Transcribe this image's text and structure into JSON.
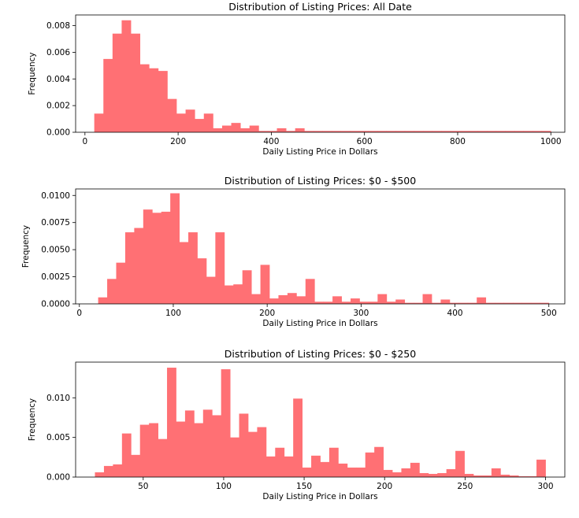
{
  "chart_data": [
    {
      "type": "bar",
      "title": "Distribution of Listing Prices: All Date",
      "xlabel": "Daily Listing Price in Dollars",
      "ylabel": "Frequency",
      "xlim": [
        -20,
        1030
      ],
      "ylim": [
        0,
        0.0088
      ],
      "xticks": [
        0,
        200,
        400,
        600,
        800,
        1000
      ],
      "yticks": [
        0.0,
        0.002,
        0.004,
        0.006,
        0.008
      ],
      "ytick_labels": [
        "0.000",
        "0.002",
        "0.004",
        "0.006",
        "0.008"
      ],
      "bin_start": 20,
      "bin_width": 19.6,
      "values": [
        0.0014,
        0.0055,
        0.0074,
        0.0084,
        0.0074,
        0.0051,
        0.0048,
        0.0046,
        0.0025,
        0.0014,
        0.0017,
        0.001,
        0.0014,
        0.0003,
        0.0005,
        0.0007,
        0.0003,
        0.0005,
        0.0001,
        0.0001,
        0.0003,
        0.0001,
        0.0003,
        0.0001,
        0.0001,
        0.0001,
        0.0001,
        0.0001,
        0.0001,
        0.0001,
        0.0001,
        0.0001,
        0.0001,
        0.0001,
        0.0001,
        0.0001,
        0.0001,
        0.0001,
        0.0001,
        0.0001,
        0.0001,
        0.0001,
        0.0001,
        0.0001,
        0.0001,
        0.0001,
        0.0001,
        0.0001,
        0.0001,
        0.0001
      ],
      "color": "#ff7074"
    },
    {
      "type": "bar",
      "title": "Distribution of Listing Prices: $0 - $500",
      "xlabel": "Daily Listing Price in Dollars",
      "ylabel": "Frequency",
      "xlim": [
        -4,
        517
      ],
      "ylim": [
        0,
        0.0106
      ],
      "xticks": [
        0,
        100,
        200,
        300,
        400,
        500
      ],
      "yticks": [
        0.0,
        0.0025,
        0.005,
        0.0075,
        0.01
      ],
      "ytick_labels": [
        "0.0000",
        "0.0025",
        "0.0050",
        "0.0075",
        "0.0100"
      ],
      "bin_start": 20,
      "bin_width": 9.6,
      "values": [
        0.0006,
        0.0023,
        0.0038,
        0.0066,
        0.007,
        0.0087,
        0.0084,
        0.0085,
        0.0102,
        0.0057,
        0.0066,
        0.0042,
        0.0025,
        0.0066,
        0.0017,
        0.0018,
        0.0031,
        0.0009,
        0.0036,
        0.0005,
        0.0008,
        0.001,
        0.0007,
        0.0023,
        0.0002,
        0.0002,
        0.0007,
        0.0002,
        0.0005,
        0.0002,
        0.0002,
        0.0009,
        0.0002,
        0.0004,
        0.0001,
        0.0001,
        0.0009,
        0.0001,
        0.0004,
        0.0001,
        0.0001,
        0.0001,
        0.0006,
        0.0001,
        0.0001,
        0.0001,
        0.0001,
        0.0001,
        0.0001,
        0.0001
      ],
      "color": "#ff7074"
    },
    {
      "type": "bar",
      "title": "Distribution of Listing Prices: $0 - $250",
      "xlabel": "Daily Listing Price in Dollars",
      "ylabel": "Frequency",
      "xlim": [
        8,
        312
      ],
      "ylim": [
        0,
        0.0145
      ],
      "xticks": [
        50,
        100,
        150,
        200,
        250,
        300
      ],
      "yticks": [
        0.0,
        0.005,
        0.01
      ],
      "ytick_labels": [
        "0.000",
        "0.005",
        "0.010"
      ],
      "bin_start": 20,
      "bin_width": 5.6,
      "values": [
        0.0006,
        0.0014,
        0.0016,
        0.0055,
        0.0028,
        0.0066,
        0.0068,
        0.0048,
        0.0138,
        0.007,
        0.0084,
        0.0068,
        0.0085,
        0.0078,
        0.0136,
        0.005,
        0.008,
        0.0057,
        0.0063,
        0.0026,
        0.0037,
        0.0026,
        0.0099,
        0.0012,
        0.0027,
        0.0019,
        0.0037,
        0.0017,
        0.0012,
        0.0012,
        0.0031,
        0.0038,
        0.0009,
        0.0006,
        0.0011,
        0.0018,
        0.0005,
        0.0004,
        0.0005,
        0.001,
        0.0033,
        0.0004,
        0.0002,
        0.0002,
        0.0011,
        0.0003,
        0.0002,
        0.0001,
        0.0001,
        0.0022
      ],
      "color": "#ff7074"
    }
  ]
}
